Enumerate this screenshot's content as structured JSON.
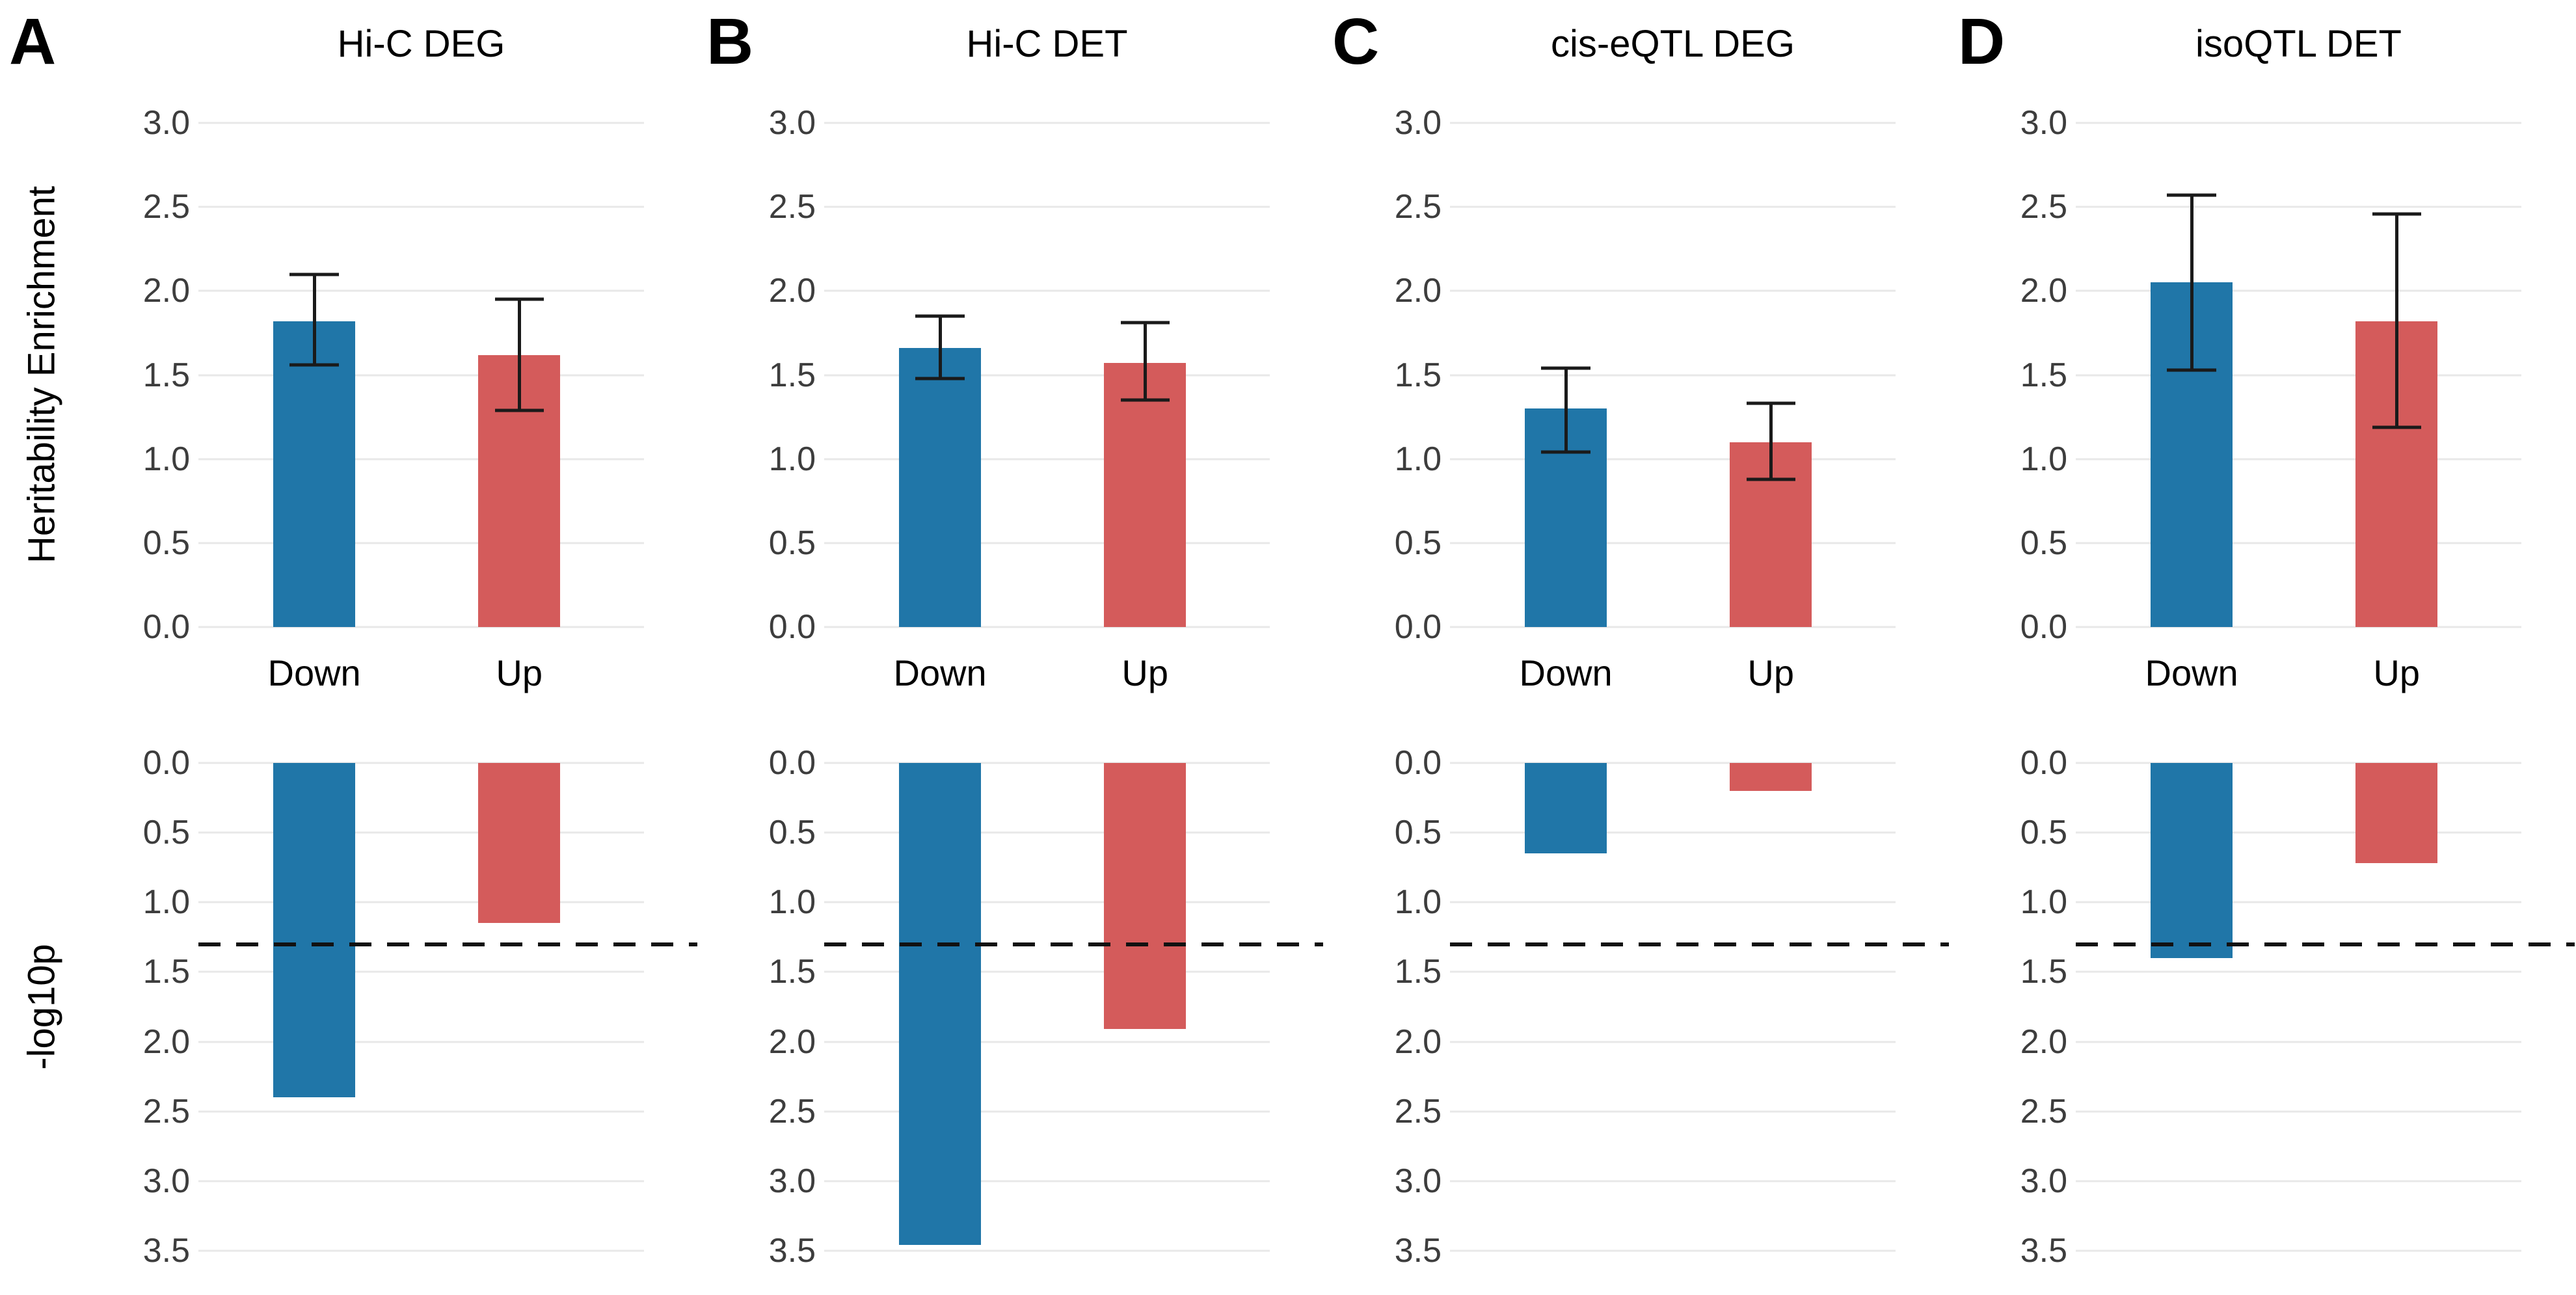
{
  "figure": {
    "axis_title_top": "Heritability Enrichment",
    "axis_title_bottom": "-log10p",
    "categories": [
      "Down",
      "Up"
    ],
    "series": [
      {
        "name": "Down",
        "color": "#2076a8"
      },
      {
        "name": "Up",
        "color": "#d45b5b"
      }
    ],
    "top_axis": {
      "ticks": [
        "3.0",
        "2.5",
        "2.0",
        "1.5",
        "1.0",
        "0.5",
        "0.0"
      ],
      "max": 3
    },
    "bottom_axis": {
      "ticks": [
        "0.0",
        "0.5",
        "1.0",
        "1.5",
        "2.0",
        "2.5",
        "3.0",
        "3.5"
      ],
      "max": 3.5
    },
    "significance_threshold": 1.3,
    "grid_color": "#e8e8e8",
    "threshold_color": "#111111"
  },
  "chart_data": [
    {
      "panel": "A",
      "title": "Hi-C DEG",
      "type": "bar",
      "categories": [
        "Down",
        "Up"
      ],
      "enrichment": {
        "ylabel": "Heritability Enrichment",
        "ylim": [
          0,
          3
        ],
        "values": [
          1.82,
          1.62
        ],
        "error_low": [
          1.56,
          1.29
        ],
        "error_high": [
          2.1,
          1.95
        ]
      },
      "neg_log10_p": {
        "ylabel": "-log10p",
        "ylim": [
          0,
          3.5
        ],
        "axis_inverted": true,
        "values": [
          2.4,
          1.15
        ],
        "significance_threshold": 1.3
      }
    },
    {
      "panel": "B",
      "title": "Hi-C DET",
      "type": "bar",
      "categories": [
        "Down",
        "Up"
      ],
      "enrichment": {
        "ylabel": "Heritability Enrichment",
        "ylim": [
          0,
          3
        ],
        "values": [
          1.66,
          1.57
        ],
        "error_low": [
          1.48,
          1.35
        ],
        "error_high": [
          1.85,
          1.81
        ]
      },
      "neg_log10_p": {
        "ylabel": "-log10p",
        "ylim": [
          0,
          3.5
        ],
        "axis_inverted": true,
        "values": [
          3.46,
          1.91
        ],
        "significance_threshold": 1.3
      }
    },
    {
      "panel": "C",
      "title": "cis-eQTL DEG",
      "type": "bar",
      "categories": [
        "Down",
        "Up"
      ],
      "enrichment": {
        "ylabel": "Heritability Enrichment",
        "ylim": [
          0,
          3
        ],
        "values": [
          1.3,
          1.1
        ],
        "error_low": [
          1.04,
          0.88
        ],
        "error_high": [
          1.54,
          1.33
        ]
      },
      "neg_log10_p": {
        "ylabel": "-log10p",
        "ylim": [
          0,
          3.5
        ],
        "axis_inverted": true,
        "values": [
          0.65,
          0.2
        ],
        "significance_threshold": 1.3
      }
    },
    {
      "panel": "D",
      "title": "isoQTL DET",
      "type": "bar",
      "categories": [
        "Down",
        "Up"
      ],
      "enrichment": {
        "ylabel": "Heritability Enrichment",
        "ylim": [
          0,
          3
        ],
        "values": [
          2.05,
          1.82
        ],
        "error_low": [
          1.53,
          1.19
        ],
        "error_high": [
          2.57,
          2.46
        ]
      },
      "neg_log10_p": {
        "ylabel": "-log10p",
        "ylim": [
          0,
          3.5
        ],
        "axis_inverted": true,
        "values": [
          1.4,
          0.72
        ],
        "significance_threshold": 1.3
      }
    }
  ]
}
